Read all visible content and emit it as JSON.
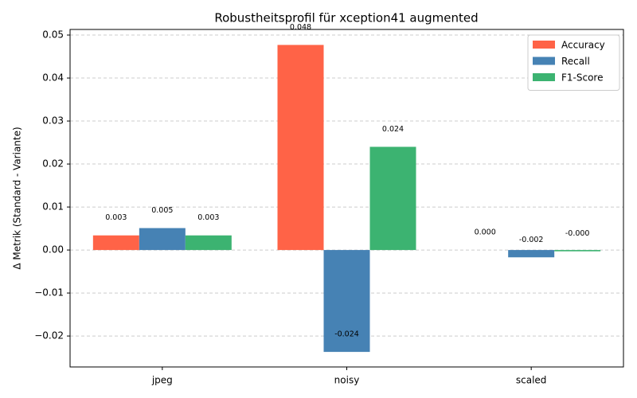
{
  "chart_data": {
    "type": "bar",
    "title": "Robustheitsprofil für xception41 augmented",
    "y_label": "Δ Metrik (Standard - Variante)",
    "categories": [
      "jpeg",
      "noisy",
      "scaled"
    ],
    "series": [
      {
        "name": "Accuracy",
        "color": "#ff6347",
        "values": [
          0.0034,
          0.0477,
          0.0
        ],
        "value_labels": [
          "0.003",
          "0.048",
          "0.000"
        ]
      },
      {
        "name": "Recall",
        "color": "#4682b4",
        "values": [
          0.0051,
          -0.0237,
          -0.0017
        ],
        "value_labels": [
          "0.005",
          "-0.024",
          "-0.002"
        ]
      },
      {
        "name": "F1-Score",
        "color": "#3cb371",
        "values": [
          0.0034,
          0.024,
          -0.0003
        ],
        "value_labels": [
          "0.003",
          "0.024",
          "-0.000"
        ]
      }
    ],
    "ylim": [
      -0.0272,
      0.0513
    ],
    "yticks": [
      {
        "value": -0.02,
        "label": "−0.02"
      },
      {
        "value": -0.01,
        "label": "−0.01"
      },
      {
        "value": 0,
        "label": "0.00"
      },
      {
        "value": 0.01,
        "label": "0.01"
      },
      {
        "value": 0.02,
        "label": "0.02"
      },
      {
        "value": 0.03,
        "label": "0.03"
      },
      {
        "value": 0.04,
        "label": "0.04"
      },
      {
        "value": 0.05,
        "label": "0.05"
      }
    ],
    "grid": true,
    "legend": "upper right"
  }
}
